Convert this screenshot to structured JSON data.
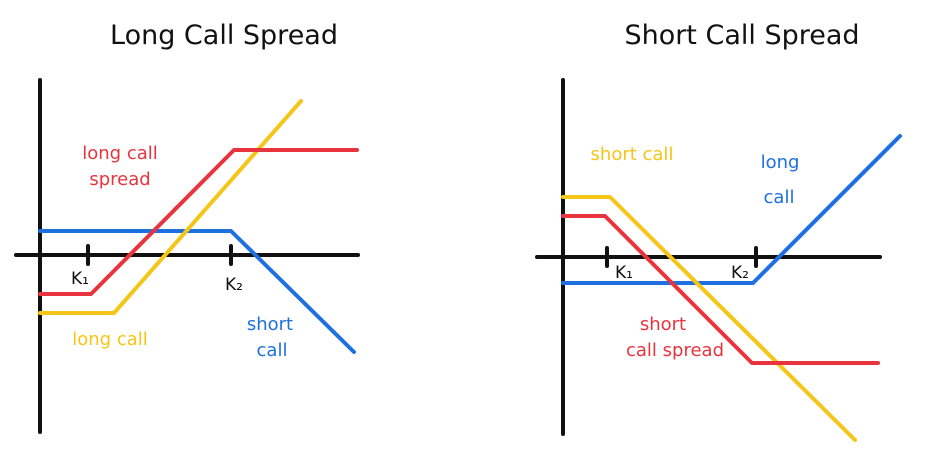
{
  "colors": {
    "red": "#e8343e",
    "yellow": "#f5c518",
    "blue": "#1e6fe0",
    "axis": "#111111"
  },
  "left_panel": {
    "title": "Long Call Spread",
    "tick_labels": [
      "K₁",
      "K₂"
    ],
    "labels": {
      "spread": [
        "long call",
        "spread"
      ],
      "long_call": "long call",
      "short_call": [
        "short",
        "call"
      ]
    }
  },
  "right_panel": {
    "title": "Short Call Spread",
    "tick_labels": [
      "K₁",
      "K₂"
    ],
    "labels": {
      "short_call": "short call",
      "long_call": [
        "long",
        "call"
      ],
      "spread": [
        "short",
        "call spread"
      ]
    }
  }
}
